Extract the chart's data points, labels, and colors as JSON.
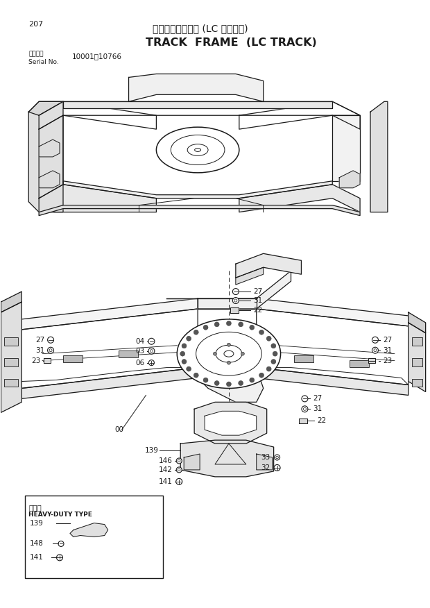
{
  "page_number": "207",
  "title_japanese": "トラックフレーム (LC トラック)",
  "title_english": "TRACK  FRAME  (LC TRACK)",
  "serial_label1": "適用号機",
  "serial_label2": "Serial No.",
  "serial_range": "10001～10766",
  "background_color": "#ffffff",
  "text_color": "#1a1a1a",
  "line_color": "#1a1a1a"
}
